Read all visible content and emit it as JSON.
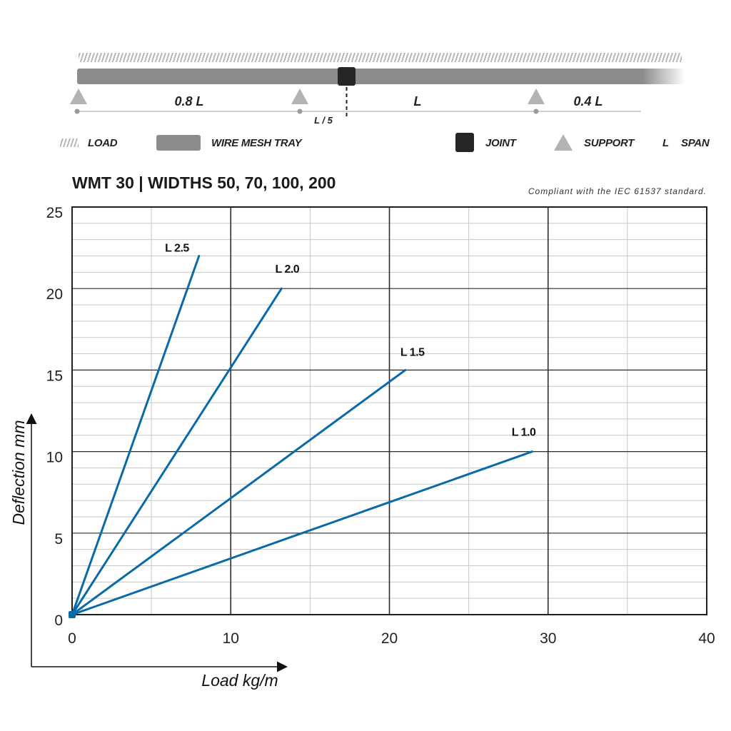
{
  "legend": {
    "load": "LOAD",
    "tray": "WIRE MESH TRAY",
    "joint": "JOINT",
    "support": "SUPPORT",
    "span_symbol": "L",
    "span": "SPAN"
  },
  "diagram": {
    "dim_left": "0.8 L",
    "dim_mid": "L",
    "dim_right": "0.4 L",
    "dim_joint": "L / 5"
  },
  "colors": {
    "series": "#0a6aa8",
    "tray": "#8c8c8c",
    "joint": "#262626",
    "support": "#b3b3b3"
  },
  "chart_data": {
    "type": "line",
    "title": "WMT 30 | WIDTHS 50, 70, 100, 200",
    "note": "Compliant with the IEC 61537 standard.",
    "xlabel": "Load kg/m",
    "ylabel": "Deflection mm",
    "xlim": [
      0,
      40
    ],
    "ylim": [
      0,
      25
    ],
    "xticks": [
      "0",
      "10",
      "20",
      "30",
      "40"
    ],
    "yticks": [
      "0",
      "5",
      "10",
      "15",
      "20",
      "25"
    ],
    "grid": true,
    "series": [
      {
        "name": "L 2.5",
        "x": [
          0,
          8.0
        ],
        "y": [
          0,
          22.0
        ]
      },
      {
        "name": "L 2.0",
        "x": [
          0,
          13.2
        ],
        "y": [
          0,
          20.0
        ]
      },
      {
        "name": "L 1.5",
        "x": [
          0,
          21.0
        ],
        "y": [
          0,
          15.0
        ]
      },
      {
        "name": "L 1.0",
        "x": [
          0,
          29.0
        ],
        "y": [
          0,
          10.0
        ]
      }
    ]
  }
}
